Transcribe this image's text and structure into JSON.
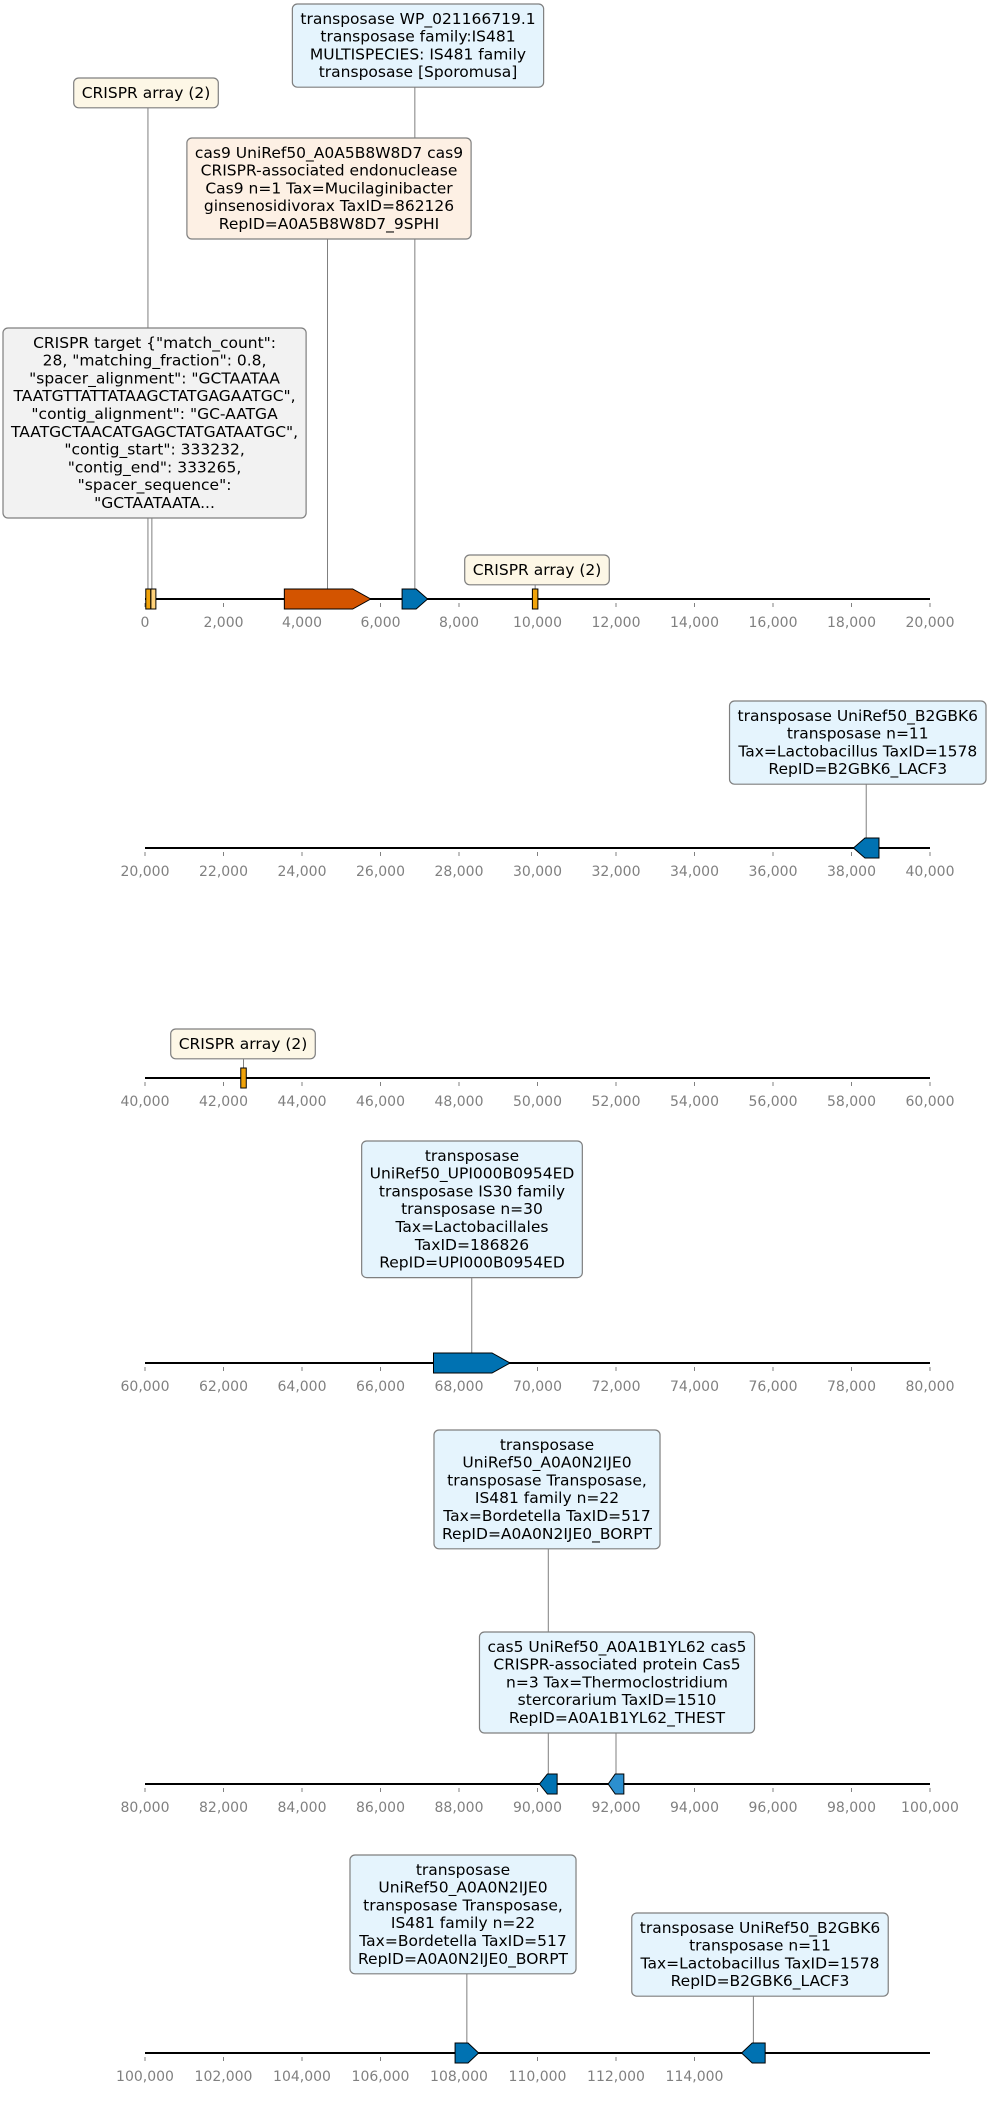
{
  "colors": {
    "cas9": "#d35400",
    "transposase": "#0072b2",
    "cas5": "#2c8fcf",
    "crispr_array": "#f0a30a",
    "crispr_target": "#ffd27a",
    "label_fill_crispr_array": "#fdf7e6",
    "label_fill_cas9": "#fdf0e4",
    "label_fill_blue": "#e5f4fd",
    "label_fill_target": "#f2f2f2",
    "axis": "#000000",
    "tick_text": "#808080"
  },
  "tracks": [
    {
      "range": [
        0,
        20000
      ],
      "ticks": [
        "0",
        "2,000",
        "4,000",
        "6,000",
        "8,000",
        "10,000",
        "12,000",
        "14,000",
        "16,000",
        "18,000",
        "20,000"
      ],
      "features": [
        {
          "type": "crispr_array",
          "name": "crispr-array-1",
          "start": 20,
          "end": 130,
          "strand": 0
        },
        {
          "type": "crispr_target",
          "name": "crispr-target",
          "start": 150,
          "end": 200,
          "strand": 0
        },
        {
          "type": "cas9",
          "name": "cas9-gene",
          "start": 3550,
          "end": 5750,
          "strand": 1
        },
        {
          "type": "transposase",
          "name": "transposase-gene-1",
          "start": 6550,
          "end": 7200,
          "strand": 1
        },
        {
          "type": "crispr_array",
          "name": "crispr-array-2",
          "start": 9870,
          "end": 10010,
          "strand": 0
        }
      ],
      "labels": [
        {
          "name": "label-transposase-wp",
          "fill": "label_fill_blue",
          "lines": [
            "transposase WP_021166719.1",
            "transposase family:IS481",
            "MULTISPECIES: IS481 family",
            "transposase [Sporomusa]"
          ]
        },
        {
          "name": "label-crispr-array-1",
          "fill": "label_fill_crispr_array",
          "lines": [
            "CRISPR array (2)"
          ]
        },
        {
          "name": "label-cas9",
          "fill": "label_fill_cas9",
          "lines": [
            "cas9 UniRef50_A0A5B8W8D7 cas9",
            "CRISPR-associated endonuclease",
            "Cas9 n=1 Tax=Mucilaginibacter",
            "ginsenosidivorax TaxID=862126",
            "RepID=A0A5B8W8D7_9SPHI"
          ]
        },
        {
          "name": "label-crispr-target",
          "fill": "label_fill_target",
          "lines": [
            "CRISPR target {\"match_count\":",
            "28, \"matching_fraction\": 0.8,",
            "\"spacer_alignment\": \"GCTAATAA",
            "TAATGTTATTATAAGCTATGAGAATGC\",",
            "\"contig_alignment\": \"GC-AATGA",
            "TAATGCTAACATGAGCTATGATAATGC\",",
            "\"contig_start\": 333232,",
            "\"contig_end\": 333265,",
            "\"spacer_sequence\":",
            "\"GCTAATAATA..."
          ]
        },
        {
          "name": "label-crispr-array-2",
          "fill": "label_fill_crispr_array",
          "lines": [
            "CRISPR array (2)"
          ]
        }
      ]
    },
    {
      "range": [
        20000,
        40000
      ],
      "ticks": [
        "20,000",
        "22,000",
        "24,000",
        "26,000",
        "28,000",
        "30,000",
        "32,000",
        "34,000",
        "36,000",
        "38,000",
        "40,000"
      ],
      "features": [
        {
          "type": "transposase",
          "name": "transposase-gene-2",
          "start": 38050,
          "end": 38700,
          "strand": -1
        }
      ],
      "labels": [
        {
          "name": "label-transposase-b2gbk6-1",
          "fill": "label_fill_blue",
          "lines": [
            "transposase UniRef50_B2GBK6",
            "transposase n=11",
            "Tax=Lactobacillus TaxID=1578",
            "RepID=B2GBK6_LACF3"
          ]
        }
      ]
    },
    {
      "range": [
        40000,
        60000
      ],
      "ticks": [
        "40,000",
        "42,000",
        "44,000",
        "46,000",
        "48,000",
        "50,000",
        "52,000",
        "54,000",
        "56,000",
        "58,000",
        "60,000"
      ],
      "features": [
        {
          "type": "crispr_array",
          "name": "crispr-array-3",
          "start": 42440,
          "end": 42580,
          "strand": 0
        }
      ],
      "labels": [
        {
          "name": "label-crispr-array-3",
          "fill": "label_fill_crispr_array",
          "lines": [
            "CRISPR array (2)"
          ]
        }
      ]
    },
    {
      "range": [
        60000,
        80000
      ],
      "ticks": [
        "60,000",
        "62,000",
        "64,000",
        "66,000",
        "68,000",
        "70,000",
        "72,000",
        "74,000",
        "76,000",
        "78,000",
        "80,000"
      ],
      "features": [
        {
          "type": "transposase",
          "name": "transposase-gene-3",
          "start": 67350,
          "end": 69300,
          "strand": 1
        }
      ],
      "labels": [
        {
          "name": "label-transposase-upi000b0954ed",
          "fill": "label_fill_blue",
          "lines": [
            "transposase",
            "UniRef50_UPI000B0954ED",
            "transposase IS30 family",
            "transposase n=30",
            "Tax=Lactobacillales",
            "TaxID=186826",
            "RepID=UPI000B0954ED"
          ]
        }
      ]
    },
    {
      "range": [
        80000,
        100000
      ],
      "ticks": [
        "80,000",
        "82,000",
        "84,000",
        "86,000",
        "88,000",
        "90,000",
        "92,000",
        "94,000",
        "96,000",
        "98,000",
        "100,000"
      ],
      "features": [
        {
          "type": "transposase",
          "name": "transposase-gene-4",
          "start": 90050,
          "end": 90500,
          "strand": -1
        },
        {
          "type": "cas5",
          "name": "cas5-gene",
          "start": 91800,
          "end": 92200,
          "strand": -1
        }
      ],
      "labels": [
        {
          "name": "label-transposase-a0a0n2ije0-1",
          "fill": "label_fill_blue",
          "lines": [
            "transposase",
            "UniRef50_A0A0N2IJE0",
            "transposase Transposase,",
            "IS481 family n=22",
            "Tax=Bordetella TaxID=517",
            "RepID=A0A0N2IJE0_BORPT"
          ]
        },
        {
          "name": "label-cas5",
          "fill": "label_fill_blue",
          "lines": [
            "cas5 UniRef50_A0A1B1YL62 cas5",
            "CRISPR-associated protein Cas5",
            "n=3 Tax=Thermoclostridium",
            "stercorarium TaxID=1510",
            "RepID=A0A1B1YL62_THEST"
          ]
        }
      ]
    },
    {
      "range": [
        100000,
        120000
      ],
      "ticks": [
        "100,000",
        "102,000",
        "104,000",
        "106,000",
        "108,000",
        "110,000",
        "112,000",
        "114,000"
      ],
      "features": [
        {
          "type": "transposase",
          "name": "transposase-gene-5",
          "start": 107900,
          "end": 108500,
          "strand": 1
        },
        {
          "type": "transposase",
          "name": "transposase-gene-6",
          "start": 115200,
          "end": 115800,
          "strand": -1
        }
      ],
      "labels": [
        {
          "name": "label-transposase-a0a0n2ije0-2",
          "fill": "label_fill_blue",
          "lines": [
            "transposase",
            "UniRef50_A0A0N2IJE0",
            "transposase Transposase,",
            "IS481 family n=22",
            "Tax=Bordetella TaxID=517",
            "RepID=A0A0N2IJE0_BORPT"
          ]
        },
        {
          "name": "label-transposase-b2gbk6-2",
          "fill": "label_fill_blue",
          "lines": [
            "transposase UniRef50_B2GBK6",
            "transposase n=11",
            "Tax=Lactobacillus TaxID=1578",
            "RepID=B2GBK6_LACF3"
          ]
        }
      ]
    }
  ]
}
